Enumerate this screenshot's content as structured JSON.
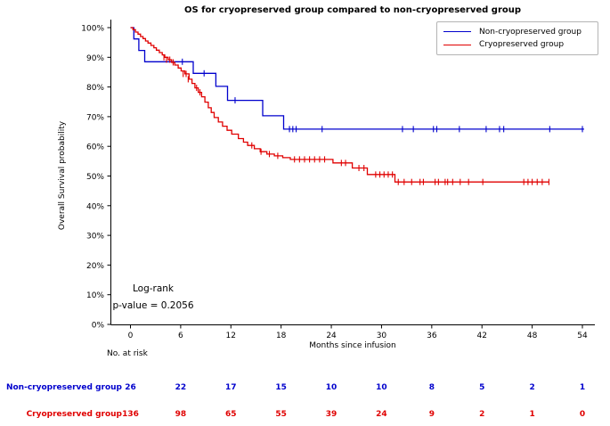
{
  "annotation": {
    "line1": "Log-rank",
    "line2": "p-value = 0.2056"
  },
  "risk_table": {
    "header": "No. at risk",
    "columns": [
      0,
      6,
      12,
      18,
      24,
      30,
      36,
      42,
      48,
      54
    ],
    "rows": [
      {
        "label": "Non-cryopreserved group",
        "color": "#0000cd",
        "values": [
          26,
          22,
          17,
          15,
          10,
          10,
          8,
          5,
          2,
          1
        ]
      },
      {
        "label": "Cryopreserved group",
        "color": "#e00000",
        "values": [
          136,
          98,
          65,
          55,
          39,
          24,
          9,
          2,
          1,
          0
        ]
      }
    ]
  },
  "chart_data": {
    "type": "line",
    "subtype": "kaplan-meier-step",
    "title": "OS for cryopreserved group compared to non-cryopreserved group",
    "xlabel": "Months since infusion",
    "ylabel": "Overall Survival probability",
    "xlim": [
      0,
      54
    ],
    "ylim": [
      0,
      100
    ],
    "x_ticks": [
      0,
      6,
      12,
      18,
      24,
      30,
      36,
      42,
      48,
      54
    ],
    "y_ticks": [
      0,
      10,
      20,
      30,
      40,
      50,
      60,
      70,
      80,
      90,
      100
    ],
    "y_tick_format": "percent",
    "grid": false,
    "legend_position": "upper right",
    "series": [
      {
        "name": "Non-cryopreserved group",
        "color": "#0000cd",
        "n_at_start": 26,
        "end_month": 54.2,
        "points": [
          [
            0,
            100
          ],
          [
            0.4,
            96.2
          ],
          [
            1.0,
            92.3
          ],
          [
            1.7,
            88.5
          ],
          [
            7.5,
            84.6
          ],
          [
            10.2,
            80.2
          ],
          [
            11.6,
            75.5
          ],
          [
            15.8,
            70.3
          ],
          [
            18.3,
            65.8
          ]
        ],
        "censor_marks": [
          [
            6.2,
            88.5
          ],
          [
            8.8,
            84.6
          ],
          [
            12.5,
            75.5
          ],
          [
            19.0,
            65.8
          ],
          [
            19.4,
            65.8
          ],
          [
            19.8,
            65.8
          ],
          [
            22.9,
            65.8
          ],
          [
            32.5,
            65.8
          ],
          [
            33.8,
            65.8
          ],
          [
            36.2,
            65.8
          ],
          [
            36.6,
            65.8
          ],
          [
            39.3,
            65.8
          ],
          [
            42.5,
            65.8
          ],
          [
            44.1,
            65.8
          ],
          [
            44.6,
            65.8
          ],
          [
            50.1,
            65.8
          ],
          [
            54.0,
            65.8
          ]
        ]
      },
      {
        "name": "Cryopreserved group",
        "color": "#e00000",
        "n_at_start": 136,
        "end_month": 50.0,
        "points": [
          [
            0,
            100
          ],
          [
            0.3,
            99.3
          ],
          [
            0.6,
            98.5
          ],
          [
            0.9,
            97.8
          ],
          [
            1.2,
            97.0
          ],
          [
            1.5,
            96.3
          ],
          [
            1.8,
            95.5
          ],
          [
            2.1,
            94.8
          ],
          [
            2.45,
            94.0
          ],
          [
            2.8,
            93.2
          ],
          [
            3.1,
            92.4
          ],
          [
            3.45,
            91.6
          ],
          [
            3.8,
            90.8
          ],
          [
            4.1,
            90.0
          ],
          [
            4.5,
            89.2
          ],
          [
            4.9,
            88.3
          ],
          [
            5.3,
            87.4
          ],
          [
            5.7,
            86.4
          ],
          [
            6.05,
            85.4
          ],
          [
            6.5,
            84.4
          ],
          [
            7.0,
            82.6
          ],
          [
            7.35,
            81.2
          ],
          [
            7.7,
            79.7
          ],
          [
            8.1,
            78.2
          ],
          [
            8.5,
            76.7
          ],
          [
            8.9,
            74.9
          ],
          [
            9.3,
            73.0
          ],
          [
            9.65,
            71.4
          ],
          [
            10.0,
            69.7
          ],
          [
            10.5,
            68.2
          ],
          [
            11.0,
            66.8
          ],
          [
            11.55,
            65.4
          ],
          [
            12.1,
            64.1
          ],
          [
            12.9,
            62.6
          ],
          [
            13.5,
            61.4
          ],
          [
            14.0,
            60.3
          ],
          [
            14.8,
            59.2
          ],
          [
            15.5,
            58.2
          ],
          [
            16.3,
            57.4
          ],
          [
            17.2,
            56.8
          ],
          [
            18.2,
            56.2
          ],
          [
            19.1,
            55.6
          ],
          [
            24.2,
            54.4
          ],
          [
            26.5,
            52.7
          ],
          [
            28.3,
            50.5
          ],
          [
            31.6,
            48.0
          ]
        ],
        "censor_marks": [
          [
            4.0,
            90.0
          ],
          [
            4.3,
            89.2
          ],
          [
            4.7,
            89.2
          ],
          [
            5.1,
            88.3
          ],
          [
            6.3,
            84.4
          ],
          [
            6.65,
            84.4
          ],
          [
            6.9,
            82.6
          ],
          [
            7.9,
            79.7
          ],
          [
            8.3,
            78.2
          ],
          [
            14.5,
            60.3
          ],
          [
            15.6,
            58.2
          ],
          [
            16.6,
            57.4
          ],
          [
            17.6,
            56.8
          ],
          [
            19.6,
            55.6
          ],
          [
            20.2,
            55.6
          ],
          [
            20.8,
            55.6
          ],
          [
            21.4,
            55.6
          ],
          [
            22.0,
            55.6
          ],
          [
            22.6,
            55.6
          ],
          [
            23.2,
            55.6
          ],
          [
            25.2,
            54.4
          ],
          [
            25.7,
            54.4
          ],
          [
            27.3,
            52.7
          ],
          [
            27.9,
            52.7
          ],
          [
            29.3,
            50.5
          ],
          [
            29.8,
            50.5
          ],
          [
            30.3,
            50.5
          ],
          [
            30.8,
            50.5
          ],
          [
            31.3,
            50.5
          ],
          [
            32.0,
            48.0
          ],
          [
            32.7,
            48.0
          ],
          [
            33.6,
            48.0
          ],
          [
            34.6,
            48.0
          ],
          [
            35.0,
            48.0
          ],
          [
            36.4,
            48.0
          ],
          [
            36.8,
            48.0
          ],
          [
            37.6,
            48.0
          ],
          [
            37.9,
            48.0
          ],
          [
            38.5,
            48.0
          ],
          [
            39.4,
            48.0
          ],
          [
            40.4,
            48.0
          ],
          [
            42.1,
            48.0
          ],
          [
            47.0,
            48.0
          ],
          [
            47.5,
            48.0
          ],
          [
            48.0,
            48.0
          ],
          [
            48.6,
            48.0
          ],
          [
            49.2,
            48.0
          ],
          [
            50.0,
            48.0
          ]
        ]
      }
    ]
  }
}
